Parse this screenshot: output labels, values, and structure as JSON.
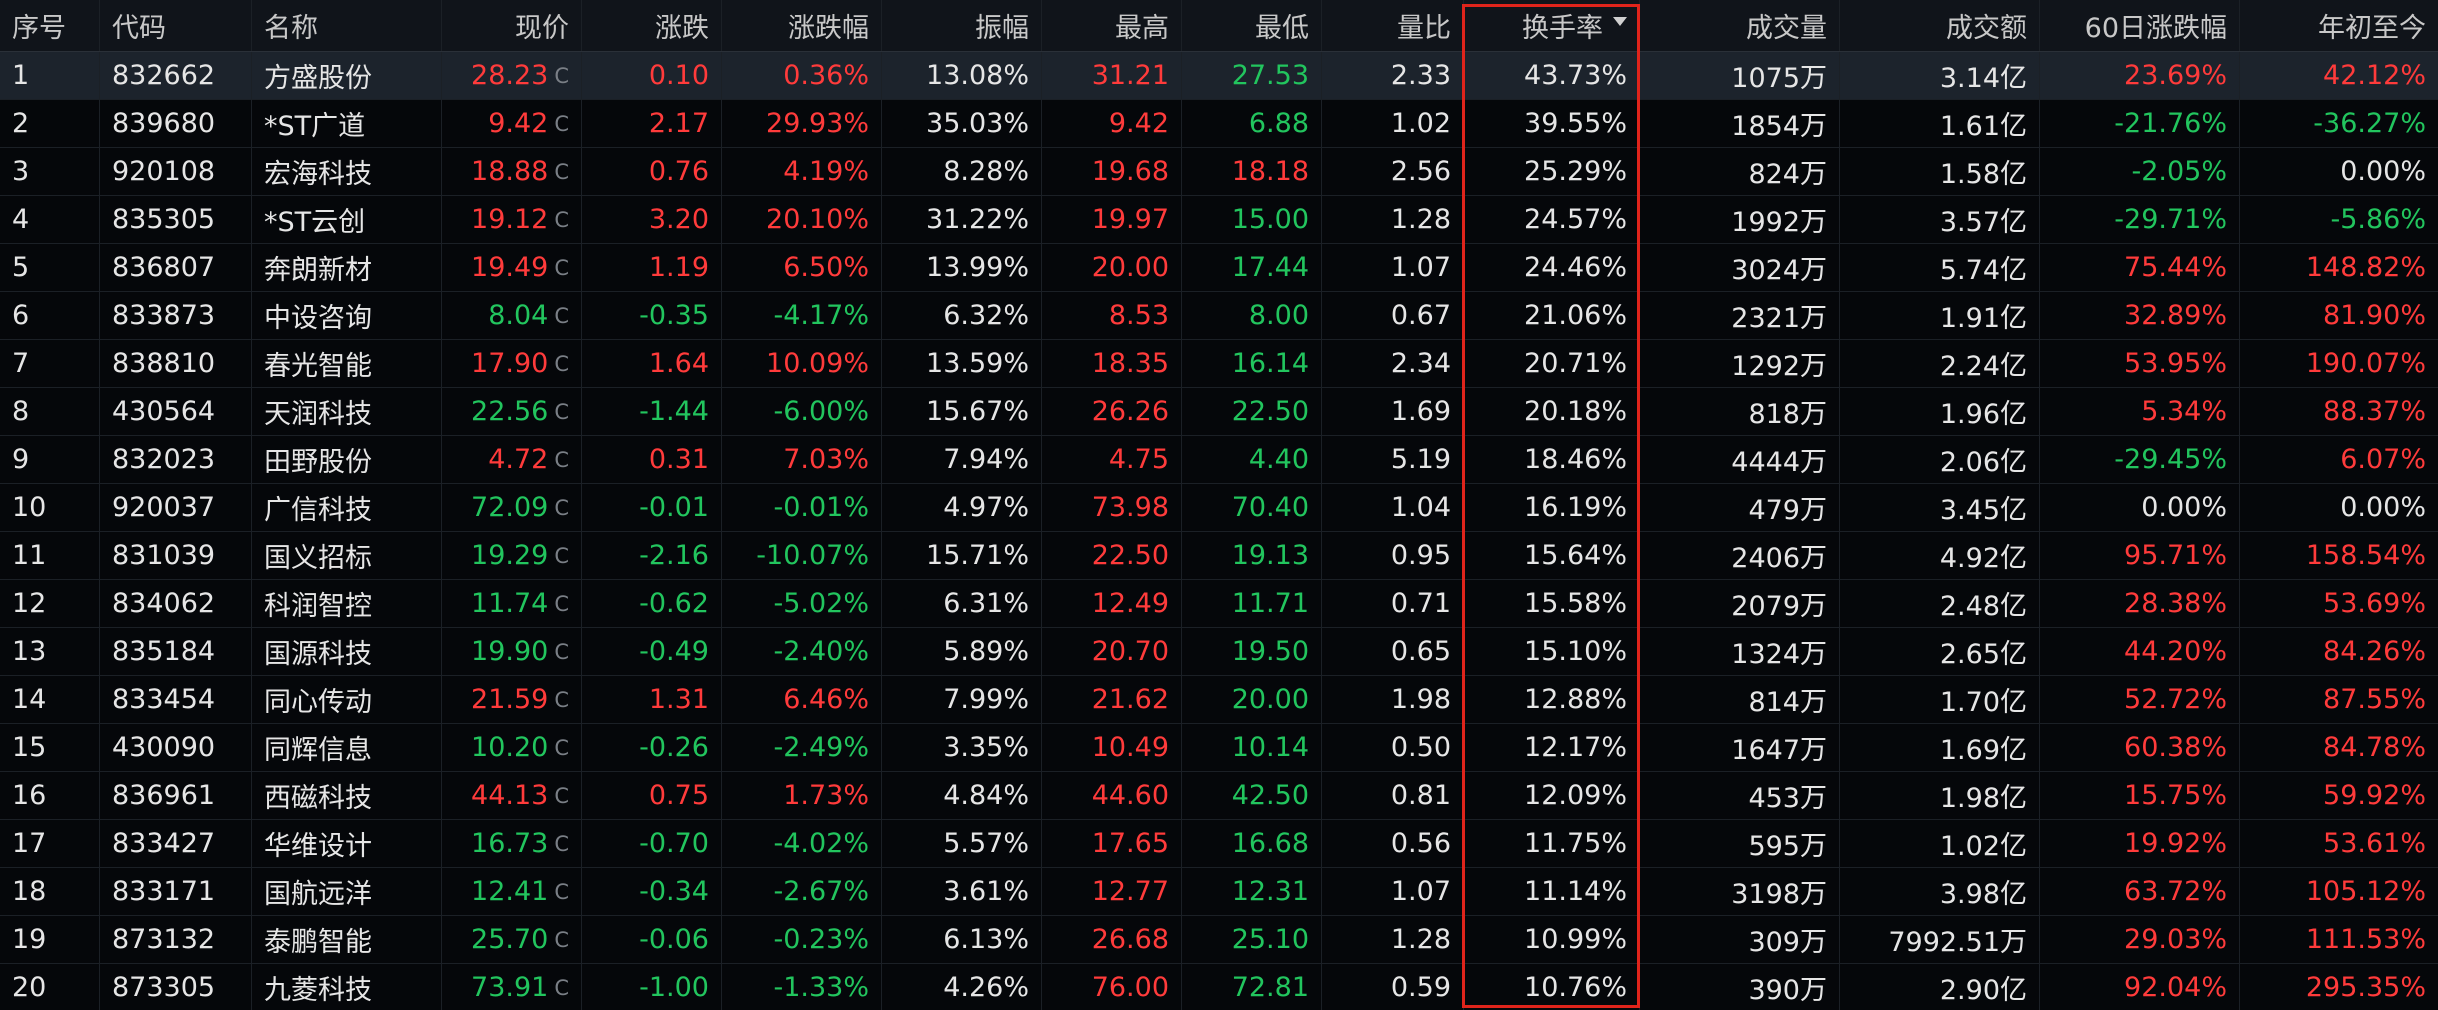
{
  "headers": {
    "seq": "序号",
    "code": "代码",
    "name": "名称",
    "price": "现价",
    "change": "涨跌",
    "pct": "涨跌幅",
    "amplitude": "振幅",
    "high": "最高",
    "low": "最低",
    "vol_ratio": "量比",
    "turnover": "换手率",
    "volume": "成交量",
    "amount": "成交额",
    "change_60d": "60日涨跌幅",
    "ytd": "年初至今"
  },
  "price_tag": "C",
  "colors": {
    "up": "#ff3b3b",
    "down": "#22c55e",
    "flat": "#e6e6e6",
    "highlight_border": "#e0241b"
  },
  "rows": [
    {
      "seq": "1",
      "code": "832662",
      "name": "方盛股份",
      "price": "28.23",
      "change": "0.10",
      "pct": "0.36%",
      "amplitude": "13.08%",
      "high": "31.21",
      "low": "27.53",
      "vol_ratio": "2.33",
      "turnover": "43.73%",
      "volume": "1075万",
      "amount": "3.14亿",
      "change_60d": "23.69%",
      "ytd": "42.12%"
    },
    {
      "seq": "2",
      "code": "839680",
      "name": "*ST广道",
      "price": "9.42",
      "change": "2.17",
      "pct": "29.93%",
      "amplitude": "35.03%",
      "high": "9.42",
      "low": "6.88",
      "vol_ratio": "1.02",
      "turnover": "39.55%",
      "volume": "1854万",
      "amount": "1.61亿",
      "change_60d": "-21.76%",
      "ytd": "-36.27%"
    },
    {
      "seq": "3",
      "code": "920108",
      "name": "宏海科技",
      "price": "18.88",
      "change": "0.76",
      "pct": "4.19%",
      "amplitude": "8.28%",
      "high": "19.68",
      "low": "18.18",
      "vol_ratio": "2.56",
      "turnover": "25.29%",
      "volume": "824万",
      "amount": "1.58亿",
      "change_60d": "-2.05%",
      "ytd": "0.00%"
    },
    {
      "seq": "4",
      "code": "835305",
      "name": "*ST云创",
      "price": "19.12",
      "change": "3.20",
      "pct": "20.10%",
      "amplitude": "31.22%",
      "high": "19.97",
      "low": "15.00",
      "vol_ratio": "1.28",
      "turnover": "24.57%",
      "volume": "1992万",
      "amount": "3.57亿",
      "change_60d": "-29.71%",
      "ytd": "-5.86%"
    },
    {
      "seq": "5",
      "code": "836807",
      "name": "奔朗新材",
      "price": "19.49",
      "change": "1.19",
      "pct": "6.50%",
      "amplitude": "13.99%",
      "high": "20.00",
      "low": "17.44",
      "vol_ratio": "1.07",
      "turnover": "24.46%",
      "volume": "3024万",
      "amount": "5.74亿",
      "change_60d": "75.44%",
      "ytd": "148.82%"
    },
    {
      "seq": "6",
      "code": "833873",
      "name": "中设咨询",
      "price": "8.04",
      "change": "-0.35",
      "pct": "-4.17%",
      "amplitude": "6.32%",
      "high": "8.53",
      "low": "8.00",
      "vol_ratio": "0.67",
      "turnover": "21.06%",
      "volume": "2321万",
      "amount": "1.91亿",
      "change_60d": "32.89%",
      "ytd": "81.90%"
    },
    {
      "seq": "7",
      "code": "838810",
      "name": "春光智能",
      "price": "17.90",
      "change": "1.64",
      "pct": "10.09%",
      "amplitude": "13.59%",
      "high": "18.35",
      "low": "16.14",
      "vol_ratio": "2.34",
      "turnover": "20.71%",
      "volume": "1292万",
      "amount": "2.24亿",
      "change_60d": "53.95%",
      "ytd": "190.07%"
    },
    {
      "seq": "8",
      "code": "430564",
      "name": "天润科技",
      "price": "22.56",
      "change": "-1.44",
      "pct": "-6.00%",
      "amplitude": "15.67%",
      "high": "26.26",
      "low": "22.50",
      "vol_ratio": "1.69",
      "turnover": "20.18%",
      "volume": "818万",
      "amount": "1.96亿",
      "change_60d": "5.34%",
      "ytd": "88.37%"
    },
    {
      "seq": "9",
      "code": "832023",
      "name": "田野股份",
      "price": "4.72",
      "change": "0.31",
      "pct": "7.03%",
      "amplitude": "7.94%",
      "high": "4.75",
      "low": "4.40",
      "vol_ratio": "5.19",
      "turnover": "18.46%",
      "volume": "4444万",
      "amount": "2.06亿",
      "change_60d": "-29.45%",
      "ytd": "6.07%"
    },
    {
      "seq": "10",
      "code": "920037",
      "name": "广信科技",
      "price": "72.09",
      "change": "-0.01",
      "pct": "-0.01%",
      "amplitude": "4.97%",
      "high": "73.98",
      "low": "70.40",
      "vol_ratio": "1.04",
      "turnover": "16.19%",
      "volume": "479万",
      "amount": "3.45亿",
      "change_60d": "0.00%",
      "ytd": "0.00%"
    },
    {
      "seq": "11",
      "code": "831039",
      "name": "国义招标",
      "price": "19.29",
      "change": "-2.16",
      "pct": "-10.07%",
      "amplitude": "15.71%",
      "high": "22.50",
      "low": "19.13",
      "vol_ratio": "0.95",
      "turnover": "15.64%",
      "volume": "2406万",
      "amount": "4.92亿",
      "change_60d": "95.71%",
      "ytd": "158.54%"
    },
    {
      "seq": "12",
      "code": "834062",
      "name": "科润智控",
      "price": "11.74",
      "change": "-0.62",
      "pct": "-5.02%",
      "amplitude": "6.31%",
      "high": "12.49",
      "low": "11.71",
      "vol_ratio": "0.71",
      "turnover": "15.58%",
      "volume": "2079万",
      "amount": "2.48亿",
      "change_60d": "28.38%",
      "ytd": "53.69%"
    },
    {
      "seq": "13",
      "code": "835184",
      "name": "国源科技",
      "price": "19.90",
      "change": "-0.49",
      "pct": "-2.40%",
      "amplitude": "5.89%",
      "high": "20.70",
      "low": "19.50",
      "vol_ratio": "0.65",
      "turnover": "15.10%",
      "volume": "1324万",
      "amount": "2.65亿",
      "change_60d": "44.20%",
      "ytd": "84.26%"
    },
    {
      "seq": "14",
      "code": "833454",
      "name": "同心传动",
      "price": "21.59",
      "change": "1.31",
      "pct": "6.46%",
      "amplitude": "7.99%",
      "high": "21.62",
      "low": "20.00",
      "vol_ratio": "1.98",
      "turnover": "12.88%",
      "volume": "814万",
      "amount": "1.70亿",
      "change_60d": "52.72%",
      "ytd": "87.55%"
    },
    {
      "seq": "15",
      "code": "430090",
      "name": "同辉信息",
      "price": "10.20",
      "change": "-0.26",
      "pct": "-2.49%",
      "amplitude": "3.35%",
      "high": "10.49",
      "low": "10.14",
      "vol_ratio": "0.50",
      "turnover": "12.17%",
      "volume": "1647万",
      "amount": "1.69亿",
      "change_60d": "60.38%",
      "ytd": "84.78%"
    },
    {
      "seq": "16",
      "code": "836961",
      "name": "西磁科技",
      "price": "44.13",
      "change": "0.75",
      "pct": "1.73%",
      "amplitude": "4.84%",
      "high": "44.60",
      "low": "42.50",
      "vol_ratio": "0.81",
      "turnover": "12.09%",
      "volume": "453万",
      "amount": "1.98亿",
      "change_60d": "15.75%",
      "ytd": "59.92%"
    },
    {
      "seq": "17",
      "code": "833427",
      "name": "华维设计",
      "price": "16.73",
      "change": "-0.70",
      "pct": "-4.02%",
      "amplitude": "5.57%",
      "high": "17.65",
      "low": "16.68",
      "vol_ratio": "0.56",
      "turnover": "11.75%",
      "volume": "595万",
      "amount": "1.02亿",
      "change_60d": "19.92%",
      "ytd": "53.61%"
    },
    {
      "seq": "18",
      "code": "833171",
      "name": "国航远洋",
      "price": "12.41",
      "change": "-0.34",
      "pct": "-2.67%",
      "amplitude": "3.61%",
      "high": "12.77",
      "low": "12.31",
      "vol_ratio": "1.07",
      "turnover": "11.14%",
      "volume": "3198万",
      "amount": "3.98亿",
      "change_60d": "63.72%",
      "ytd": "105.12%"
    },
    {
      "seq": "19",
      "code": "873132",
      "name": "泰鹏智能",
      "price": "25.70",
      "change": "-0.06",
      "pct": "-0.23%",
      "amplitude": "6.13%",
      "high": "26.68",
      "low": "25.10",
      "vol_ratio": "1.28",
      "turnover": "10.99%",
      "volume": "309万",
      "amount": "7992.51万",
      "change_60d": "29.03%",
      "ytd": "111.53%"
    },
    {
      "seq": "20",
      "code": "873305",
      "name": "九菱科技",
      "price": "73.91",
      "change": "-1.00",
      "pct": "-1.33%",
      "amplitude": "4.26%",
      "high": "76.00",
      "low": "72.81",
      "vol_ratio": "0.59",
      "turnover": "10.76%",
      "volume": "390万",
      "amount": "2.90亿",
      "change_60d": "92.04%",
      "ytd": "295.35%"
    }
  ]
}
